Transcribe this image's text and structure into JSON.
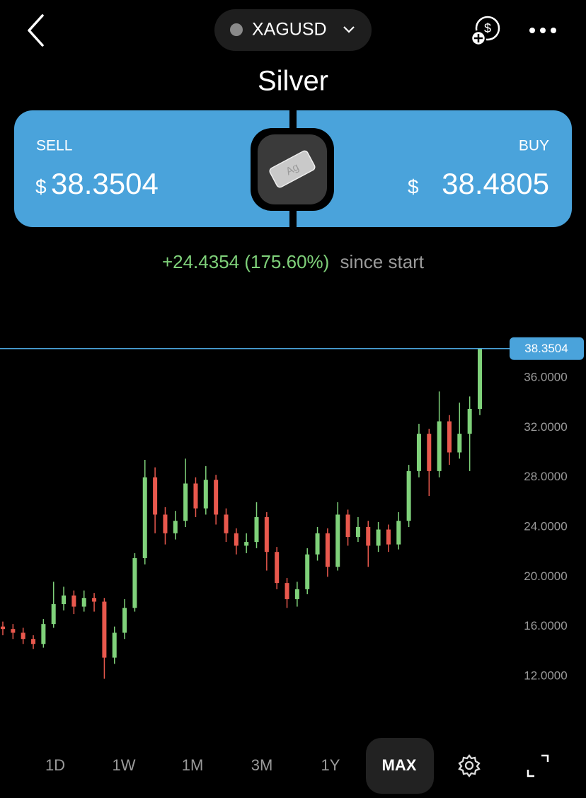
{
  "header": {
    "symbol": "XAGUSD",
    "title": "Silver"
  },
  "sell": {
    "label": "SELL",
    "currency": "$",
    "price": "38.3504"
  },
  "buy": {
    "label": "BUY",
    "currency": "$",
    "price": "38.4805"
  },
  "icon_text": "Ag",
  "change": {
    "value": "+24.4354 (175.60%)",
    "suffix": "since start"
  },
  "chart_data": {
    "type": "candlestick",
    "up_color": "#7fd17a",
    "down_color": "#e8584d",
    "line_color": "#4aa3db",
    "open": [
      16.0,
      15.8,
      15.5,
      15.0,
      14.6,
      16.2,
      17.8,
      18.5,
      17.6,
      18.3,
      18.0,
      13.5,
      15.5,
      17.5,
      21.5,
      28.0,
      25.0,
      23.5,
      24.5,
      27.5,
      25.5,
      27.8,
      25.0,
      23.5,
      22.5,
      22.8,
      24.8,
      22.0,
      19.5,
      18.2,
      19.0,
      21.8,
      23.5,
      20.8,
      25.0,
      23.2,
      24.0,
      22.5,
      23.8,
      22.6,
      24.5,
      28.5,
      31.5,
      28.5,
      32.5,
      30.0,
      31.5,
      33.5
    ],
    "high": [
      16.4,
      16.2,
      15.9,
      15.3,
      16.6,
      19.6,
      19.2,
      18.9,
      18.9,
      18.7,
      18.3,
      16.0,
      18.2,
      21.9,
      29.4,
      28.8,
      25.6,
      25.3,
      29.5,
      28.0,
      28.9,
      28.2,
      25.5,
      23.9,
      23.5,
      26.0,
      25.2,
      22.4,
      19.9,
      19.6,
      22.3,
      24.0,
      23.9,
      26.0,
      25.4,
      24.8,
      24.5,
      24.4,
      24.2,
      25.2,
      29.0,
      32.3,
      31.9,
      34.9,
      33.0,
      34.0,
      34.5,
      38.35
    ],
    "low": [
      15.3,
      15.0,
      14.6,
      14.2,
      14.3,
      15.9,
      17.3,
      17.0,
      17.2,
      17.2,
      11.8,
      13.0,
      15.0,
      17.2,
      21.0,
      23.5,
      22.6,
      23.0,
      24.0,
      24.8,
      25.0,
      24.2,
      22.8,
      21.8,
      21.9,
      22.3,
      20.5,
      19.0,
      17.5,
      17.6,
      18.6,
      21.3,
      20.0,
      20.5,
      22.5,
      22.8,
      20.8,
      22.0,
      22.0,
      22.2,
      24.0,
      28.0,
      26.5,
      28.0,
      29.0,
      29.5,
      28.5,
      33.0
    ],
    "close": [
      15.8,
      15.5,
      15.0,
      14.6,
      16.2,
      17.8,
      18.5,
      17.6,
      18.3,
      18.0,
      13.5,
      15.5,
      17.5,
      21.5,
      28.0,
      25.0,
      23.5,
      24.5,
      27.5,
      25.5,
      27.8,
      25.0,
      23.5,
      22.5,
      22.8,
      24.8,
      22.0,
      19.5,
      18.2,
      19.0,
      21.8,
      23.5,
      20.8,
      25.0,
      23.2,
      24.0,
      22.5,
      23.8,
      22.6,
      24.5,
      28.5,
      31.5,
      28.5,
      32.5,
      30.0,
      31.5,
      33.5,
      38.35
    ],
    "price_line": 38.3504,
    "ylim": [
      8,
      40
    ],
    "yticks": [
      {
        "value": 12,
        "label": "12.0000"
      },
      {
        "value": 16,
        "label": "16.0000"
      },
      {
        "value": 20,
        "label": "20.0000"
      },
      {
        "value": 24,
        "label": "24.0000"
      },
      {
        "value": 28,
        "label": "28.0000"
      },
      {
        "value": 32,
        "label": "32.0000"
      },
      {
        "value": 36,
        "label": "36.0000"
      }
    ]
  },
  "tabs": [
    "1D",
    "1W",
    "1M",
    "3M",
    "1Y",
    "MAX"
  ]
}
